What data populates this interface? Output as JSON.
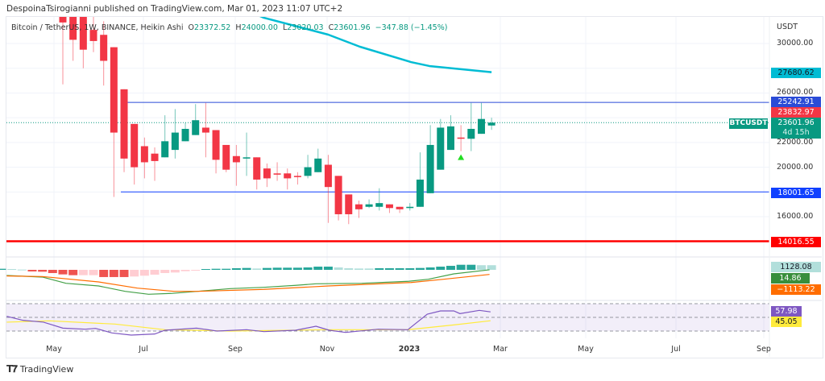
{
  "header": {
    "published": "DespoinaTsirogianni published on TradingView.com, Mar 01, 2023 11:07 UTC+2"
  },
  "legend": {
    "symbol": "Bitcoin / TetherUS, 1W, BINANCE, Heikin Ashi",
    "o_label": "O",
    "o": "23372.52",
    "h_label": "H",
    "h": "24000.00",
    "l_label": "L",
    "l": "23020.03",
    "c_label": "C",
    "c": "23601.96",
    "change": "−347.88 (−1.45%)"
  },
  "price_axis": {
    "currency": "USDT",
    "ticks": [
      "30000.00",
      "26000.00",
      "22000.00",
      "20000.00",
      "16000.00"
    ],
    "tags": {
      "ma": "27680.62",
      "resistance": "25242.91",
      "prev_close": "23832.97",
      "last": "23601.96",
      "countdown": "4d 15h",
      "support": "18001.65",
      "major_support": "14016.55"
    },
    "symbol_tag": "BTCUSDT"
  },
  "macd_tags": {
    "histogram": "1128.08",
    "macd": "14.86",
    "signal": "−1113.22"
  },
  "rsi_tags": {
    "rsi": "57.98",
    "rsi_ma": "45.05"
  },
  "time_axis": [
    "May",
    "Jul",
    "Sep",
    "Nov",
    "2023",
    "Mar",
    "May",
    "Jul",
    "Sep"
  ],
  "footer": {
    "brand": "TradingView"
  },
  "colors": {
    "up": "#089981",
    "down": "#f23645",
    "ma": "#00bcd4",
    "level": "#2a4bd7",
    "major": "#ff0000",
    "macd": "#43a047",
    "signal": "#ff6d00",
    "rsi": "#7e57c2",
    "rsi_ma": "#ffeb3b"
  },
  "chart_data": {
    "type": "candlestick",
    "title": "Bitcoin / TetherUS, 1W, BINANCE, Heikin Ashi",
    "ylabel": "USDT",
    "ylim": [
      12700,
      32300
    ],
    "candles_ohlc": [
      [
        32200,
        32300,
        26700,
        31700
      ],
      [
        32200,
        32300,
        28600,
        30300
      ],
      [
        32200,
        32300,
        28000,
        29500
      ],
      [
        31100,
        32200,
        29300,
        30200
      ],
      [
        30700,
        31800,
        26600,
        28600
      ],
      [
        29700,
        29700,
        17600,
        22800
      ],
      [
        26300,
        26300,
        19600,
        20700
      ],
      [
        23500,
        23500,
        18600,
        20000
      ],
      [
        21700,
        22400,
        19100,
        20400
      ],
      [
        21100,
        21600,
        18900,
        20500
      ],
      [
        20800,
        24200,
        20800,
        22100
      ],
      [
        21400,
        24700,
        20700,
        22800
      ],
      [
        22100,
        23600,
        22100,
        23100
      ],
      [
        22600,
        25100,
        22600,
        23800
      ],
      [
        23200,
        25200,
        20800,
        22800
      ],
      [
        23000,
        23000,
        19500,
        20600
      ],
      [
        21800,
        21800,
        19600,
        19800
      ],
      [
        20900,
        21800,
        18500,
        20400
      ],
      [
        20700,
        22800,
        19300,
        20800
      ],
      [
        20800,
        20800,
        18200,
        19000
      ],
      [
        19900,
        20300,
        18400,
        19100
      ],
      [
        19500,
        20400,
        18900,
        19400
      ],
      [
        19500,
        19900,
        18200,
        19100
      ],
      [
        19300,
        19600,
        18600,
        19200
      ],
      [
        19300,
        21000,
        19100,
        20000
      ],
      [
        19600,
        21500,
        19600,
        20700
      ],
      [
        20200,
        21000,
        15500,
        18400
      ],
      [
        19300,
        19300,
        15700,
        16200
      ],
      [
        17800,
        17800,
        15400,
        16200
      ],
      [
        17000,
        17300,
        15900,
        16600
      ],
      [
        16800,
        17400,
        16700,
        17000
      ],
      [
        16800,
        18300,
        16500,
        17100
      ],
      [
        17000,
        17000,
        16300,
        16700
      ],
      [
        16800,
        16800,
        16300,
        16600
      ],
      [
        16700,
        17100,
        16500,
        16800
      ],
      [
        16800,
        21200,
        16800,
        19000
      ],
      [
        17900,
        23400,
        17900,
        21800
      ],
      [
        19800,
        23900,
        19800,
        23200
      ],
      [
        21400,
        24200,
        21400,
        23300
      ],
      [
        22400,
        23400,
        21300,
        22300
      ],
      [
        22300,
        25200,
        21300,
        23100
      ],
      [
        22700,
        25200,
        22700,
        23900
      ],
      [
        23372.52,
        24000,
        23020.03,
        23601.96
      ]
    ],
    "moving_average": [
      [
        17.5,
        32860
      ],
      [
        19.7,
        32080
      ],
      [
        26,
        30716
      ],
      [
        29.1,
        29740
      ],
      [
        34.1,
        28500
      ],
      [
        35.9,
        28180
      ],
      [
        42,
        27680.62
      ]
    ],
    "horizontal_levels": [
      25242.91,
      18001.65,
      14016.55
    ],
    "signal_marker_week": 39,
    "macd": {
      "ylim": [
        -7450,
        1960
      ],
      "histogram_start_week": -6,
      "histogram": [
        260,
        195,
        65,
        -390,
        -455,
        -780,
        -1105,
        -1300,
        -1300,
        -1300,
        -1755,
        -1755,
        -1755,
        -1625,
        -1430,
        -1170,
        -780,
        -650,
        -325,
        -130,
        195,
        260,
        260,
        390,
        455,
        325,
        455,
        520,
        520,
        520,
        585,
        780,
        780,
        585,
        390,
        325,
        325,
        390,
        390,
        390,
        390,
        455,
        585,
        780,
        975,
        1235,
        1235,
        1128,
        1128
      ],
      "histogram_light": [
        false,
        true,
        true,
        false,
        false,
        false,
        false,
        false,
        true,
        true,
        false,
        false,
        false,
        true,
        true,
        true,
        true,
        true,
        true,
        true,
        false,
        false,
        false,
        false,
        false,
        true,
        false,
        false,
        false,
        false,
        false,
        false,
        false,
        true,
        true,
        true,
        true,
        false,
        false,
        false,
        false,
        false,
        false,
        false,
        false,
        false,
        false,
        true,
        true
      ],
      "macd_line": [
        [
          -5.5,
          -1370
        ],
        [
          -2,
          -1760
        ],
        [
          0.3,
          -3270
        ],
        [
          3.5,
          -3920
        ],
        [
          6.1,
          -5230
        ],
        [
          8.4,
          -5940
        ],
        [
          10.6,
          -5740
        ],
        [
          13.2,
          -5230
        ],
        [
          16.4,
          -4570
        ],
        [
          19.7,
          -4250
        ],
        [
          22.8,
          -3780
        ],
        [
          24.8,
          -3390
        ],
        [
          29.3,
          -3270
        ],
        [
          33.8,
          -2800
        ],
        [
          35.8,
          -2290
        ],
        [
          38.3,
          -980
        ],
        [
          41.8,
          14.86
        ]
      ],
      "signal_line": [
        [
          -5.5,
          -1500
        ],
        [
          -2,
          -1630
        ],
        [
          3.5,
          -2940
        ],
        [
          7.3,
          -4450
        ],
        [
          10.9,
          -5230
        ],
        [
          13.2,
          -5230
        ],
        [
          19.7,
          -4760
        ],
        [
          26,
          -3920
        ],
        [
          34.1,
          -3080
        ],
        [
          37.3,
          -2290
        ],
        [
          41.8,
          -1113.22
        ]
      ]
    },
    "rsi": {
      "ylim": [
        20,
        80
      ],
      "bands": [
        70,
        50,
        30
      ],
      "rsi_line": [
        [
          -5.5,
          51.5
        ],
        [
          -3.9,
          45.7
        ],
        [
          -1.9,
          43
        ],
        [
          0,
          34.3
        ],
        [
          2.2,
          32.7
        ],
        [
          3.2,
          33.9
        ],
        [
          4.8,
          27.3
        ],
        [
          6.7,
          24.1
        ],
        [
          9,
          25.7
        ],
        [
          10,
          31.2
        ],
        [
          13.1,
          34.3
        ],
        [
          15.1,
          30
        ],
        [
          18,
          32
        ],
        [
          19.7,
          29.2
        ],
        [
          22.8,
          31.2
        ],
        [
          24.8,
          37
        ],
        [
          26.1,
          31.2
        ],
        [
          27.7,
          28
        ],
        [
          30.9,
          32.7
        ],
        [
          33.8,
          32
        ],
        [
          35.7,
          54.7
        ],
        [
          37,
          59.4
        ],
        [
          38.3,
          59.4
        ],
        [
          38.9,
          55.5
        ],
        [
          40.8,
          60.2
        ],
        [
          41.9,
          57.98
        ]
      ],
      "rsi_ma_line": [
        [
          -5.5,
          43
        ],
        [
          -1.3,
          44.9
        ],
        [
          5.1,
          40.2
        ],
        [
          10,
          32
        ],
        [
          16.4,
          30
        ],
        [
          26.1,
          32
        ],
        [
          33.8,
          32
        ],
        [
          38.3,
          39
        ],
        [
          41.9,
          45.05
        ]
      ]
    }
  }
}
